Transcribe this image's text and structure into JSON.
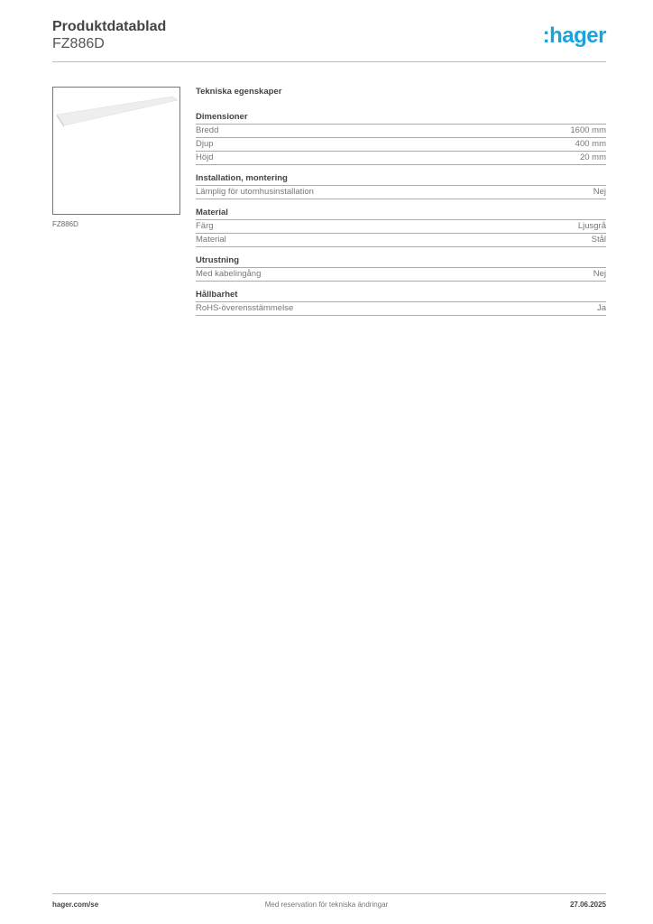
{
  "header": {
    "title": "Produktdatablad",
    "product_code": "FZ886D",
    "logo_text": ":hager",
    "logo_color": "#1aa3dd"
  },
  "product": {
    "image_alt": "Product image of a light grey steel plate",
    "caption": "FZ886D"
  },
  "specs": {
    "title": "Tekniska egenskaper",
    "sections": [
      {
        "heading": "Dimensioner",
        "rows": [
          {
            "label": "Bredd",
            "value": "1600 mm"
          },
          {
            "label": "Djup",
            "value": "400 mm"
          },
          {
            "label": "Höjd",
            "value": "20 mm"
          }
        ]
      },
      {
        "heading": "Installation, montering",
        "rows": [
          {
            "label": "Lämplig för utomhusinstallation",
            "value": "Nej"
          }
        ]
      },
      {
        "heading": "Material",
        "rows": [
          {
            "label": "Färg",
            "value": "Ljusgrå"
          },
          {
            "label": "Material",
            "value": "Stål"
          }
        ]
      },
      {
        "heading": "Utrustning",
        "rows": [
          {
            "label": "Med kabelingång",
            "value": "Nej"
          }
        ]
      },
      {
        "heading": "Hållbarhet",
        "rows": [
          {
            "label": "RoHS-överensstämmelse",
            "value": "Ja"
          }
        ]
      }
    ]
  },
  "footer": {
    "website": "hager.com/se",
    "disclaimer": "Med reservation för tekniska ändringar",
    "date": "27.06.2025"
  }
}
